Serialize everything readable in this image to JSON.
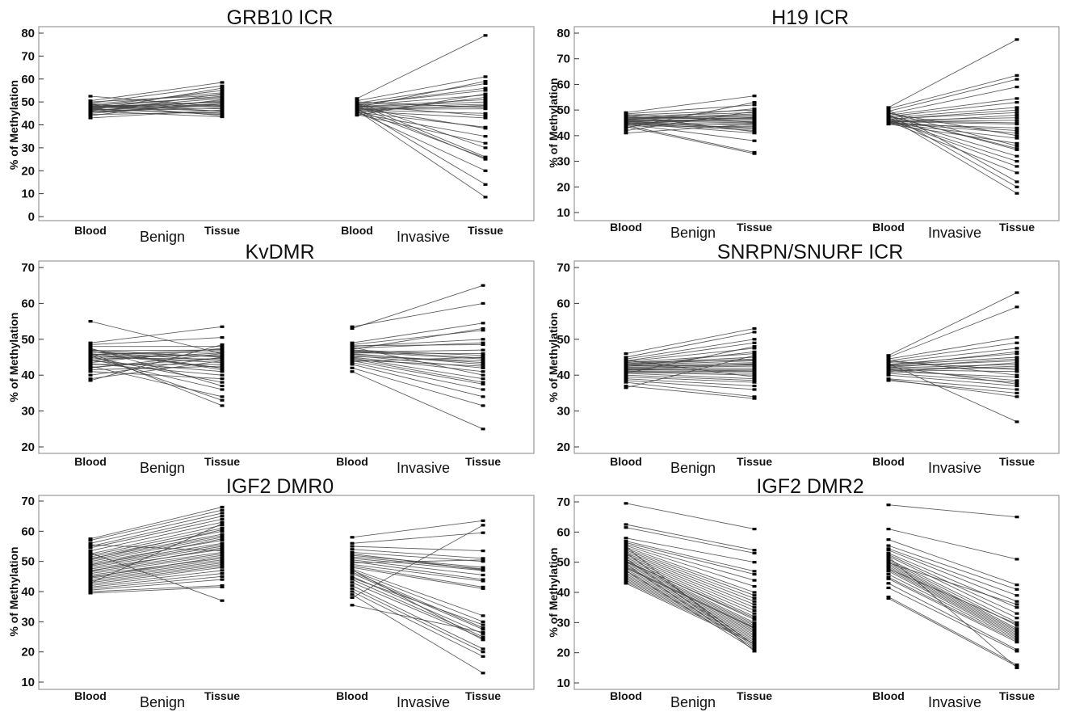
{
  "y_axis_label": "% of Methylation",
  "condition_labels": [
    "Blood",
    "Tissue"
  ],
  "group_labels": [
    "Benign",
    "Invasive"
  ],
  "chart_data": [
    {
      "type": "line",
      "title": "GRB10 ICR",
      "ylabel": "% of Methylation",
      "ylim": [
        0,
        80
      ],
      "yticks": [
        0,
        10,
        20,
        30,
        40,
        50,
        60,
        70,
        80
      ],
      "groups": [
        {
          "name": "Benign",
          "blood": [
            52.5,
            50.5,
            50,
            49.5,
            49,
            48.5,
            48.2,
            48,
            47.8,
            47.5,
            47.3,
            47,
            46.8,
            46.5,
            46.2,
            46,
            45.8,
            45.5,
            45,
            44.5,
            44,
            43,
            49,
            48.6,
            47.6,
            47.1,
            46.4,
            45.6,
            48.9,
            47.9
          ],
          "tissue": [
            48,
            58.5,
            53,
            57,
            44,
            52,
            47,
            55,
            46,
            50,
            49,
            51.5,
            45,
            48.5,
            50.5,
            43.5,
            47.5,
            53.5,
            49.5,
            45.5,
            51,
            46.5,
            54,
            48,
            52.5,
            44.5,
            56,
            49,
            46,
            50
          ]
        },
        {
          "name": "Invasive",
          "blood": [
            51.5,
            50.5,
            49.5,
            49,
            48.5,
            48,
            47.8,
            47.5,
            47,
            46.8,
            46.5,
            46,
            45.5,
            45,
            44.5,
            49.2,
            48.2,
            47.2,
            46.2,
            45.2,
            50,
            48.8,
            47.6,
            46.4,
            48.4,
            47.4,
            46.6,
            49.6,
            45.8,
            44.2
          ],
          "tissue": [
            79,
            61,
            58,
            55,
            53,
            51,
            50,
            49,
            48,
            47,
            45,
            43,
            39,
            35,
            32,
            26,
            25,
            14,
            8.5,
            52,
            47.5,
            56,
            59,
            48.5,
            44,
            38.5,
            25.5,
            30,
            20,
            53.5
          ]
        }
      ]
    },
    {
      "type": "line",
      "title": "H19 ICR",
      "ylabel": "% of Methylation",
      "ylim": [
        10,
        80
      ],
      "yticks": [
        10,
        20,
        30,
        40,
        50,
        60,
        70,
        80
      ],
      "groups": [
        {
          "name": "Benign",
          "blood": [
            49,
            48.5,
            48,
            47.5,
            47,
            46.8,
            46.5,
            46.2,
            46,
            45.8,
            45.5,
            45.2,
            45,
            44.8,
            44.5,
            44,
            43.5,
            43,
            42,
            41,
            47.2,
            46.4,
            45.6,
            44.6,
            48.2,
            43.8,
            46.1,
            45.4,
            47.8,
            44.2
          ],
          "tissue": [
            55.5,
            52,
            50,
            49,
            48,
            47.5,
            47,
            46,
            45.5,
            45,
            44,
            43,
            42,
            41,
            38,
            33.5,
            33,
            53,
            49.5,
            44.5,
            46.5,
            48.5,
            42.5,
            47.2,
            45.2,
            43.5,
            50.5,
            46.8,
            41.5,
            44.8
          ]
        },
        {
          "name": "Invasive",
          "blood": [
            51,
            50.5,
            49.5,
            48.5,
            48,
            47.5,
            47,
            46.5,
            46,
            45.8,
            45.5,
            45.2,
            45,
            44.8,
            44.5,
            49,
            47.8,
            46.8,
            46.2,
            45.6,
            50,
            48.2,
            47.2,
            46.4,
            45.4,
            44.6,
            48.8,
            47.6,
            46.1,
            45.1
          ],
          "tissue": [
            77.5,
            63.5,
            62,
            59,
            54.5,
            53,
            51,
            49,
            47,
            45,
            44.5,
            42,
            41,
            39,
            37,
            36,
            34.5,
            32,
            28,
            25.5,
            22,
            20,
            17.5,
            50,
            46,
            43,
            40,
            35,
            30,
            48
          ]
        }
      ]
    },
    {
      "type": "line",
      "title": "KvDMR",
      "ylabel": "% of Methylation",
      "ylim": [
        20,
        70
      ],
      "yticks": [
        20,
        30,
        40,
        50,
        60,
        70
      ],
      "groups": [
        {
          "name": "Benign",
          "blood": [
            55,
            49,
            48.5,
            48,
            47.5,
            47,
            46.8,
            46.5,
            46.2,
            46,
            45.8,
            45.5,
            45.2,
            45,
            44.8,
            44.5,
            44,
            43.5,
            43,
            42.5,
            42,
            41.5,
            41,
            40,
            39,
            38.5,
            47.2,
            46.4,
            45.4,
            44.2,
            43.2,
            42.2,
            46.6,
            45.6
          ],
          "tissue": [
            46,
            53.5,
            50.5,
            48,
            37,
            45,
            47,
            44,
            31.5,
            42,
            46.5,
            33,
            45.5,
            38,
            44.5,
            36,
            41,
            47.5,
            43,
            34,
            46,
            42.5,
            39,
            45,
            44,
            48.5,
            41.5,
            45.2,
            43.5,
            46.2,
            40,
            44.8,
            42,
            47.2
          ]
        },
        {
          "name": "Invasive",
          "blood": [
            53,
            53.5,
            49,
            48.5,
            48,
            47.5,
            47,
            46.5,
            46,
            45.5,
            45,
            44.5,
            44,
            43.5,
            43,
            42,
            41,
            47.2,
            46.2,
            45.2,
            44.2,
            48.2,
            46.8,
            45.8,
            44.8,
            43.8,
            47.8,
            46.4
          ],
          "tissue": [
            65,
            60,
            54.5,
            52.5,
            50,
            49,
            45.5,
            44.5,
            43,
            42,
            41,
            38,
            37.5,
            36,
            34,
            31.5,
            25,
            53,
            46,
            44,
            42.5,
            48.5,
            44.8,
            43.5,
            39,
            45,
            40,
            47
          ]
        }
      ]
    },
    {
      "type": "line",
      "title": "SNRPN/SNURF ICR",
      "ylabel": "% of Methylation",
      "ylim": [
        20,
        70
      ],
      "yticks": [
        20,
        30,
        40,
        50,
        60,
        70
      ],
      "groups": [
        {
          "name": "Benign",
          "blood": [
            46,
            45,
            44.5,
            44,
            43.8,
            43.5,
            43.2,
            43,
            42.8,
            42.5,
            42.2,
            42,
            41.8,
            41.5,
            41.2,
            41,
            40.8,
            40.5,
            40,
            39.5,
            39,
            38.5,
            38,
            37,
            36.5,
            43.6,
            42.6,
            41.6,
            40.6,
            44.2,
            42.4,
            41.4
          ],
          "tissue": [
            53,
            52,
            50,
            49,
            47.5,
            46,
            45,
            44.5,
            44,
            43.5,
            43,
            42.5,
            42,
            41.5,
            41,
            40.5,
            40,
            39,
            38.5,
            38,
            37,
            36,
            34,
            33.5,
            45.5,
            44.2,
            42.8,
            41.2,
            48,
            39.5,
            46.5,
            43.2
          ]
        },
        {
          "name": "Invasive",
          "blood": [
            45.5,
            45,
            44.5,
            44,
            43.5,
            43,
            42.8,
            42.5,
            42,
            41.8,
            41.5,
            41,
            40.5,
            40,
            39,
            38.5,
            38.8,
            43.2,
            42.2,
            41.2,
            44.2,
            42.6,
            41.6,
            40.8,
            43.8,
            42.4
          ],
          "tissue": [
            63,
            59,
            50.5,
            49,
            47.5,
            46,
            45,
            44,
            43,
            42,
            41,
            39.5,
            38,
            37,
            36,
            35,
            34,
            27,
            44.5,
            42.5,
            40,
            46.5,
            38.5,
            43.5,
            41.5,
            37.5
          ]
        }
      ]
    },
    {
      "type": "line",
      "title": "IGF2 DMR0",
      "ylabel": "% of Methylation",
      "ylim": [
        10,
        70
      ],
      "yticks": [
        10,
        20,
        30,
        40,
        50,
        60,
        70
      ],
      "groups": [
        {
          "name": "Benign",
          "blood": [
            57.5,
            57,
            56,
            55,
            54.5,
            53.5,
            52.5,
            52,
            51.5,
            51,
            50.5,
            50,
            49.5,
            49,
            48.5,
            48,
            47.5,
            47,
            46.5,
            46,
            45.5,
            45,
            44.5,
            44,
            43.5,
            43,
            42.5,
            42,
            41.5,
            41,
            40.5,
            40,
            39.5,
            52.8,
            50.8,
            48.8,
            46.8,
            44.8,
            42.8,
            55.5
          ],
          "tissue": [
            68,
            67,
            66,
            65,
            64,
            63,
            62,
            61,
            60,
            59,
            58.5,
            58,
            57,
            56,
            55.5,
            55,
            54,
            53,
            52.5,
            52,
            51,
            50.5,
            50,
            49.5,
            49,
            48.5,
            48,
            47,
            46,
            45,
            44,
            42,
            41.5,
            37,
            60.5,
            57.5,
            54.5,
            51.5,
            62.5,
            53.5
          ]
        },
        {
          "name": "Invasive",
          "blood": [
            58,
            56,
            55,
            54,
            53,
            52,
            51.5,
            51,
            50.5,
            50,
            49,
            48.5,
            48,
            47.5,
            47,
            46.5,
            46,
            45,
            44,
            43,
            42,
            41,
            40,
            39,
            38,
            35.5,
            52.5,
            49.5,
            47.2,
            44.5
          ],
          "tissue": [
            63.5,
            59.5,
            53.5,
            51,
            50,
            48,
            47.5,
            47,
            45.5,
            44,
            43.5,
            41.5,
            41,
            32,
            30,
            28,
            27.5,
            26,
            25,
            24.5,
            21,
            20,
            18.5,
            13,
            62,
            26.5,
            47.2,
            50.5,
            24,
            29
          ]
        }
      ]
    },
    {
      "type": "line",
      "title": "IGF2 DMR2",
      "ylabel": "% of Methylation",
      "ylim": [
        10,
        70
      ],
      "yticks": [
        10,
        20,
        30,
        40,
        50,
        60,
        70
      ],
      "groups": [
        {
          "name": "Benign",
          "blood": [
            69.5,
            62.5,
            61.5,
            58,
            57,
            56.5,
            56,
            55.5,
            55,
            54.5,
            54,
            53.5,
            53,
            52.5,
            52,
            51.5,
            51,
            50.5,
            50,
            49.5,
            49,
            48.5,
            48,
            47.5,
            47,
            46.5,
            46,
            45.5,
            45,
            44.5,
            44,
            43.5,
            43,
            53.2,
            51.2,
            49.2,
            47.2,
            55.2,
            50.2,
            48.2
          ],
          "tissue": [
            61,
            54,
            53,
            50,
            47,
            46,
            44,
            42,
            40,
            39,
            38,
            37,
            36,
            35,
            34,
            33,
            32,
            31,
            30,
            29.5,
            29,
            28.5,
            28,
            27.5,
            27,
            26.5,
            26,
            25.5,
            25,
            24.5,
            24,
            23.5,
            23,
            22.5,
            22,
            21.5,
            21,
            20.5,
            31.5,
            28.2
          ]
        },
        {
          "name": "Invasive",
          "blood": [
            69,
            61,
            57.5,
            55.5,
            54.5,
            54,
            53,
            52.5,
            52,
            51,
            50.5,
            50,
            49.5,
            49,
            48.5,
            48,
            47.5,
            47,
            46,
            45,
            44.5,
            43,
            41.5,
            38.5,
            38,
            51.8,
            49.8,
            47.8
          ],
          "tissue": [
            65,
            51,
            42.5,
            41,
            39,
            37,
            35,
            33,
            31.5,
            30,
            29,
            28,
            27.5,
            27,
            26.5,
            26,
            25.5,
            25,
            24.5,
            24,
            23.5,
            21,
            20.5,
            16,
            15.5,
            15,
            36,
            29.5
          ]
        }
      ]
    }
  ]
}
